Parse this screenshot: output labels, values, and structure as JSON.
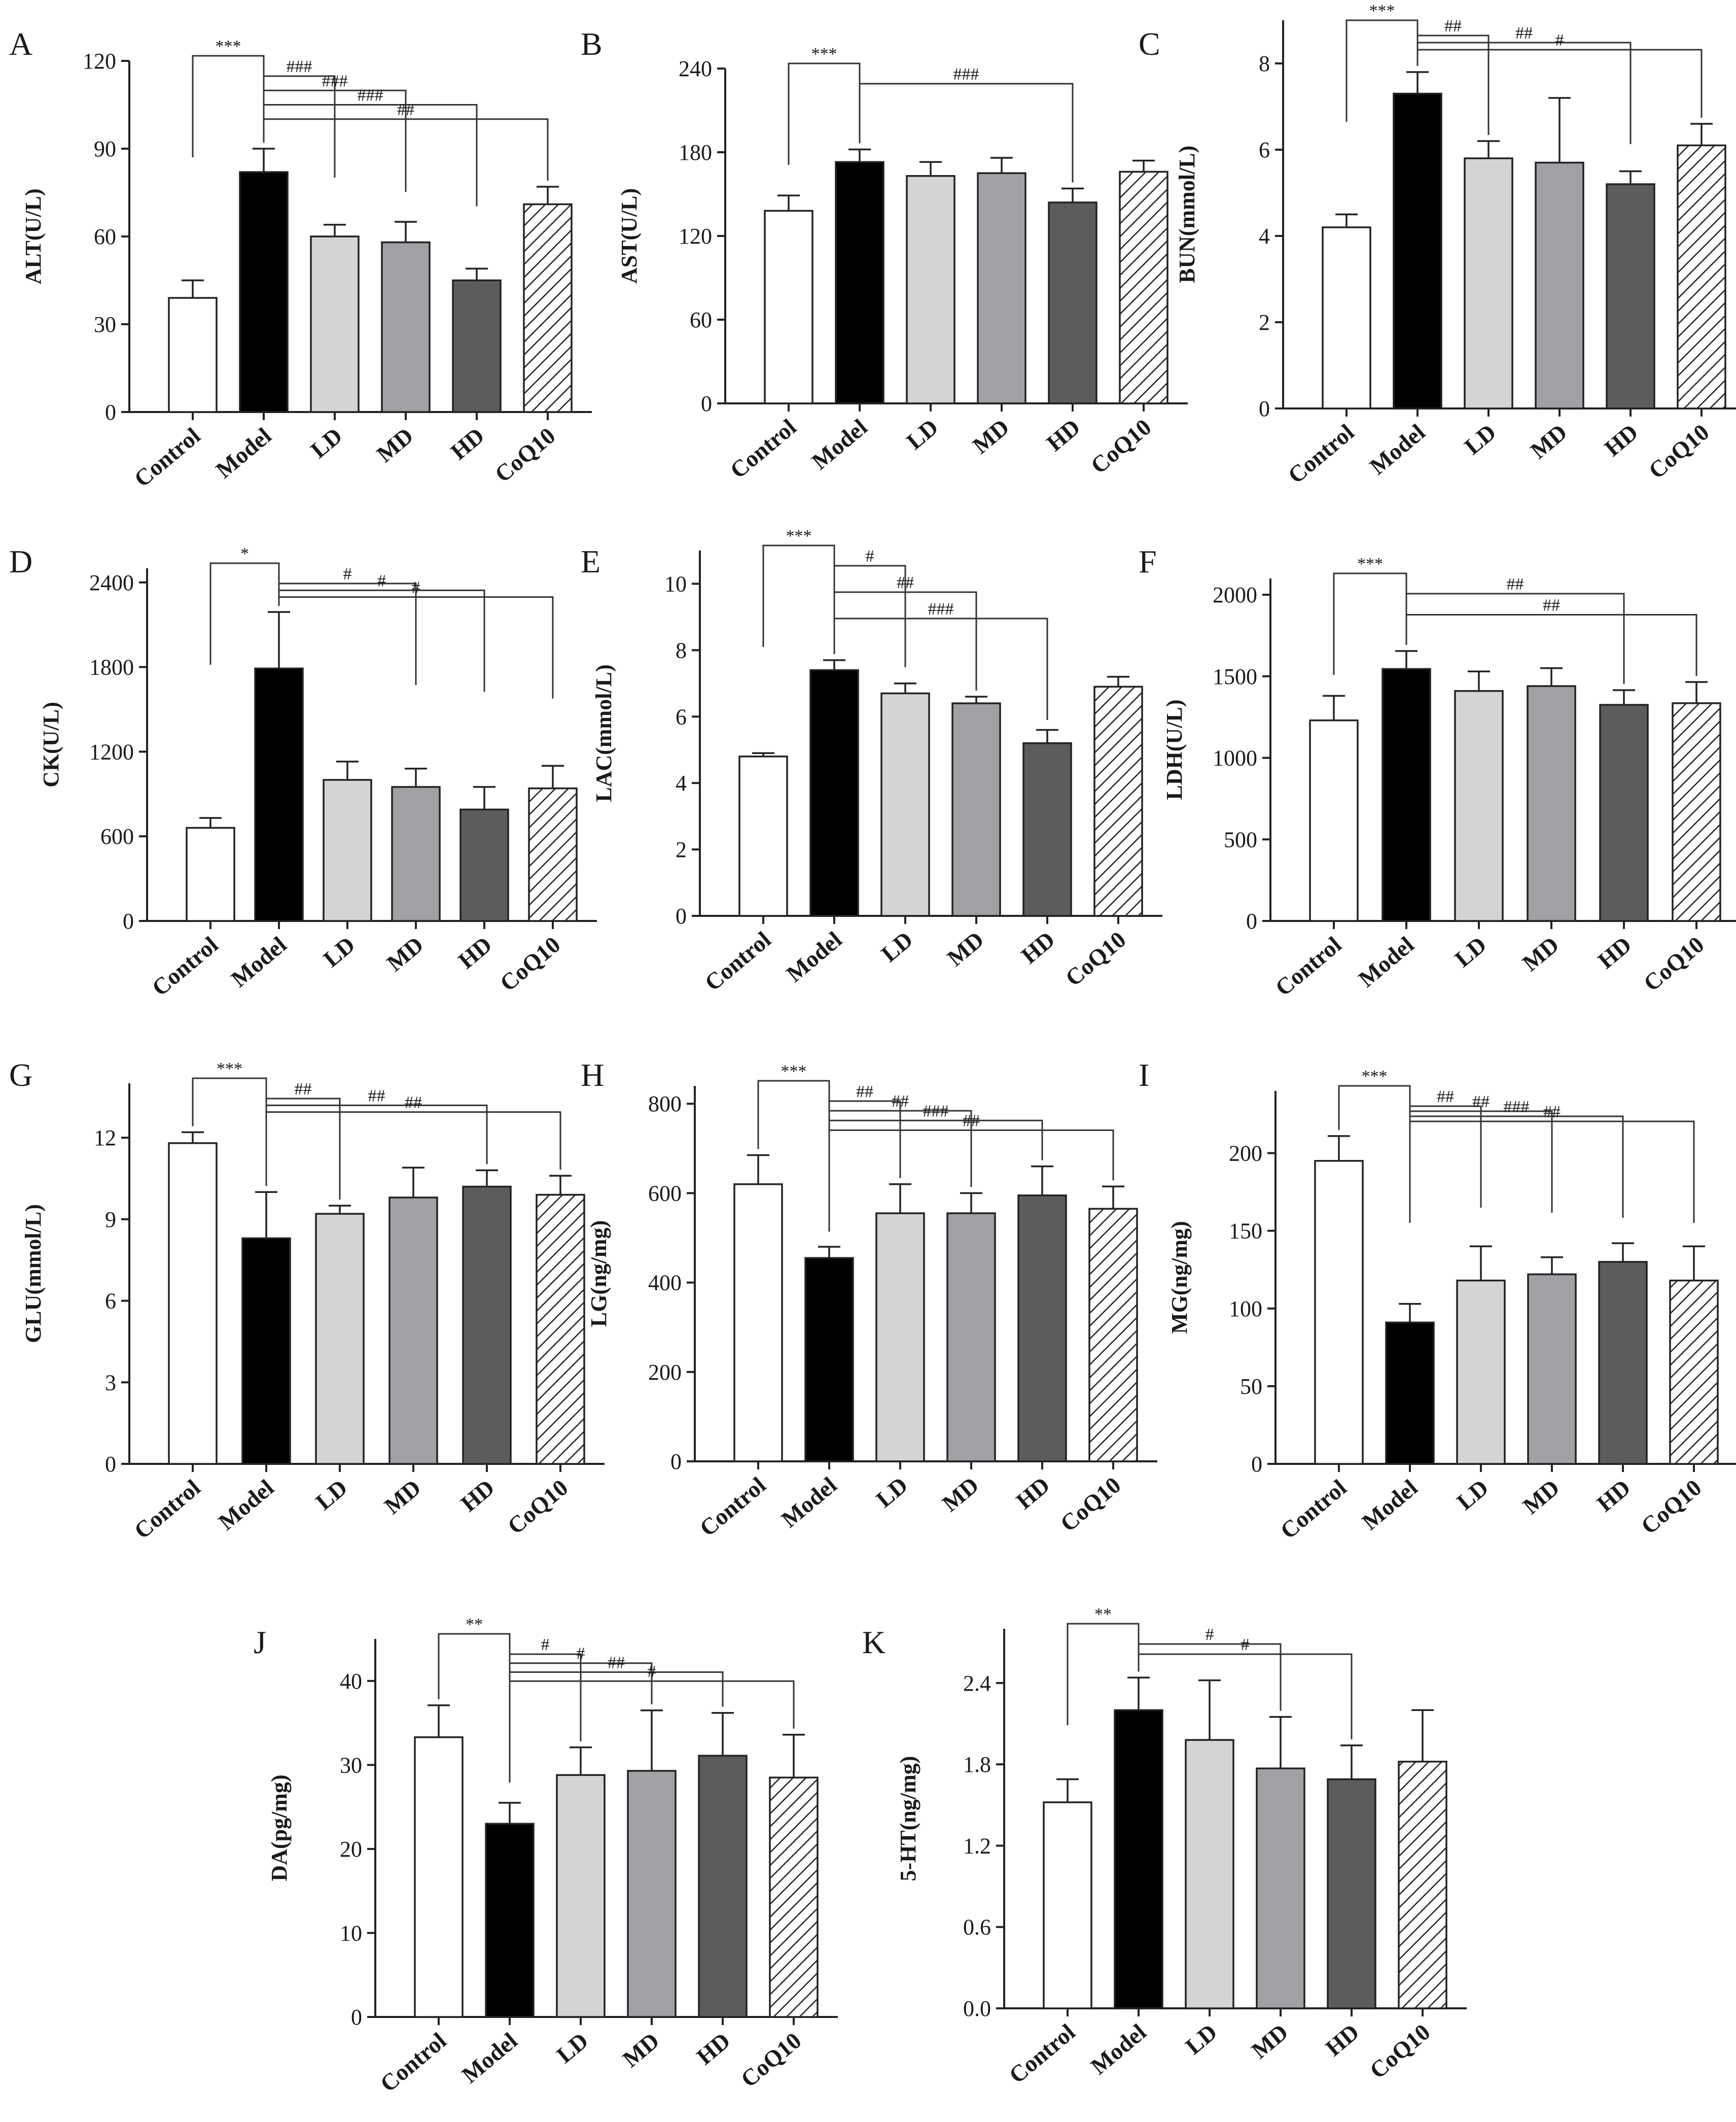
{
  "chart_data": [
    {
      "type": "bar",
      "panel": "A",
      "ylabel": "ALT(U/L)",
      "categories": [
        "Control",
        "Model",
        "LD",
        "MD",
        "HD",
        "CoQ10"
      ],
      "values": [
        39,
        82,
        60,
        58,
        45,
        71
      ],
      "errors": [
        6,
        8,
        4,
        7,
        4,
        6
      ],
      "ylim": [
        0,
        120
      ],
      "yticks": [
        0,
        30,
        60,
        90,
        120
      ],
      "annotations": [
        {
          "from": 0,
          "to": 1,
          "label": "***"
        },
        {
          "from": 1,
          "to": 2,
          "label": "###"
        },
        {
          "from": 1,
          "to": 3,
          "label": "###"
        },
        {
          "from": 1,
          "to": 4,
          "label": "###"
        },
        {
          "from": 1,
          "to": 5,
          "label": "##"
        }
      ]
    },
    {
      "type": "bar",
      "panel": "B",
      "ylabel": "AST(U/L)",
      "categories": [
        "Control",
        "Model",
        "LD",
        "MD",
        "HD",
        "CoQ10"
      ],
      "values": [
        138,
        173,
        163,
        165,
        144,
        166
      ],
      "errors": [
        11,
        9,
        10,
        11,
        10,
        8
      ],
      "ylim": [
        0,
        240
      ],
      "yticks": [
        0,
        60,
        120,
        180,
        240
      ],
      "annotations": [
        {
          "from": 0,
          "to": 1,
          "label": "***"
        },
        {
          "from": 1,
          "to": 4,
          "label": "###"
        }
      ]
    },
    {
      "type": "bar",
      "panel": "C",
      "ylabel": "BUN(mmol/L)",
      "categories": [
        "Control",
        "Model",
        "LD",
        "MD",
        "HD",
        "CoQ10"
      ],
      "values": [
        4.2,
        7.3,
        5.8,
        5.7,
        5.2,
        6.1
      ],
      "errors": [
        0.3,
        0.5,
        0.4,
        1.5,
        0.3,
        0.5
      ],
      "ylim": [
        0,
        9
      ],
      "yticks": [
        0,
        2,
        4,
        6,
        8
      ],
      "annotations": [
        {
          "from": 0,
          "to": 1,
          "label": "***"
        },
        {
          "from": 1,
          "to": 2,
          "label": "##"
        },
        {
          "from": 1,
          "to": 4,
          "label": "##"
        },
        {
          "from": 1,
          "to": 5,
          "label": "#"
        }
      ]
    },
    {
      "type": "bar",
      "panel": "D",
      "ylabel": "CK(U/L)",
      "categories": [
        "Control",
        "Model",
        "LD",
        "MD",
        "HD",
        "CoQ10"
      ],
      "values": [
        660,
        1790,
        1000,
        950,
        790,
        940
      ],
      "errors": [
        70,
        400,
        130,
        130,
        160,
        160
      ],
      "ylim": [
        0,
        2500
      ],
      "yticks": [
        0,
        600,
        1200,
        1800,
        2400
      ],
      "annotations": [
        {
          "from": 0,
          "to": 1,
          "label": "*"
        },
        {
          "from": 1,
          "to": 3,
          "label": "#"
        },
        {
          "from": 1,
          "to": 4,
          "label": "#"
        },
        {
          "from": 1,
          "to": 5,
          "label": "#"
        }
      ]
    },
    {
      "type": "bar",
      "panel": "E",
      "ylabel": "LAC(mmol/L)",
      "categories": [
        "Control",
        "Model",
        "LD",
        "MD",
        "HD",
        "CoQ10"
      ],
      "values": [
        4.8,
        7.4,
        6.7,
        6.4,
        5.2,
        6.9
      ],
      "errors": [
        0.1,
        0.3,
        0.3,
        0.2,
        0.4,
        0.3
      ],
      "ylim": [
        0,
        11
      ],
      "yticks": [
        0,
        2,
        4,
        6,
        8,
        10
      ],
      "annotations": [
        {
          "from": 0,
          "to": 1,
          "label": "***"
        },
        {
          "from": 1,
          "to": 2,
          "label": "#"
        },
        {
          "from": 1,
          "to": 3,
          "label": "##"
        },
        {
          "from": 1,
          "to": 4,
          "label": "###"
        }
      ]
    },
    {
      "type": "bar",
      "panel": "F",
      "ylabel": "LDH(U/L)",
      "categories": [
        "Control",
        "Model",
        "LD",
        "MD",
        "HD",
        "CoQ10"
      ],
      "values": [
        1230,
        1545,
        1410,
        1440,
        1325,
        1335
      ],
      "errors": [
        150,
        110,
        120,
        110,
        90,
        130
      ],
      "ylim": [
        0,
        2100
      ],
      "yticks": [
        0,
        500,
        1000,
        1500,
        2000
      ],
      "annotations": [
        {
          "from": 0,
          "to": 1,
          "label": "***"
        },
        {
          "from": 1,
          "to": 4,
          "label": "##"
        },
        {
          "from": 1,
          "to": 5,
          "label": "##"
        }
      ]
    },
    {
      "type": "bar",
      "panel": "G",
      "ylabel": "GLU(mmol/L)",
      "categories": [
        "Control",
        "Model",
        "LD",
        "MD",
        "HD",
        "CoQ10"
      ],
      "values": [
        11.8,
        8.3,
        9.2,
        9.8,
        10.2,
        9.9
      ],
      "errors": [
        0.4,
        1.7,
        0.3,
        1.1,
        0.6,
        0.7
      ],
      "ylim": [
        0,
        14
      ],
      "yticks": [
        0,
        3,
        6,
        9,
        12
      ],
      "annotations": [
        {
          "from": 0,
          "to": 1,
          "label": "***"
        },
        {
          "from": 1,
          "to": 2,
          "label": "##"
        },
        {
          "from": 1,
          "to": 4,
          "label": "##"
        },
        {
          "from": 1,
          "to": 5,
          "label": "##"
        }
      ]
    },
    {
      "type": "bar",
      "panel": "H",
      "ylabel": "LG(ng/mg)",
      "categories": [
        "Control",
        "Model",
        "LD",
        "MD",
        "HD",
        "CoQ10"
      ],
      "values": [
        620,
        455,
        555,
        555,
        595,
        565
      ],
      "errors": [
        65,
        25,
        65,
        45,
        65,
        50
      ],
      "ylim": [
        0,
        840
      ],
      "yticks": [
        0,
        200,
        400,
        600,
        800
      ],
      "annotations": [
        {
          "from": 0,
          "to": 1,
          "label": "***"
        },
        {
          "from": 1,
          "to": 2,
          "label": "##"
        },
        {
          "from": 1,
          "to": 3,
          "label": "##"
        },
        {
          "from": 1,
          "to": 4,
          "label": "###"
        },
        {
          "from": 1,
          "to": 5,
          "label": "##"
        }
      ]
    },
    {
      "type": "bar",
      "panel": "I",
      "ylabel": "MG(ng/mg)",
      "categories": [
        "Control",
        "Model",
        "LD",
        "MD",
        "HD",
        "CoQ10"
      ],
      "values": [
        195,
        91,
        118,
        122,
        130,
        118
      ],
      "errors": [
        16,
        12,
        22,
        11,
        12,
        22
      ],
      "ylim": [
        0,
        240
      ],
      "yticks": [
        0,
        50,
        100,
        150,
        200
      ],
      "annotations": [
        {
          "from": 0,
          "to": 1,
          "label": "***"
        },
        {
          "from": 1,
          "to": 2,
          "label": "##"
        },
        {
          "from": 1,
          "to": 3,
          "label": "##"
        },
        {
          "from": 1,
          "to": 4,
          "label": "###"
        },
        {
          "from": 1,
          "to": 5,
          "label": "##"
        }
      ]
    },
    {
      "type": "bar",
      "panel": "J",
      "ylabel": "DA(pg/mg)",
      "categories": [
        "Control",
        "Model",
        "LD",
        "MD",
        "HD",
        "CoQ10"
      ],
      "values": [
        33.3,
        23.0,
        28.8,
        29.3,
        31.1,
        28.5
      ],
      "errors": [
        3.8,
        2.5,
        3.3,
        7.2,
        5.1,
        5.1
      ],
      "ylim": [
        0,
        45
      ],
      "yticks": [
        0,
        10,
        20,
        30,
        40
      ],
      "annotations": [
        {
          "from": 0,
          "to": 1,
          "label": "**"
        },
        {
          "from": 1,
          "to": 2,
          "label": "#"
        },
        {
          "from": 1,
          "to": 3,
          "label": "#"
        },
        {
          "from": 1,
          "to": 4,
          "label": "##"
        },
        {
          "from": 1,
          "to": 5,
          "label": "#"
        }
      ]
    },
    {
      "type": "bar",
      "panel": "K",
      "ylabel": "5-HT(ng/mg)",
      "categories": [
        "Control",
        "Model",
        "LD",
        "MD",
        "HD",
        "CoQ10"
      ],
      "values": [
        1.52,
        2.2,
        1.98,
        1.77,
        1.69,
        1.82
      ],
      "errors": [
        0.17,
        0.24,
        0.44,
        0.38,
        0.25,
        0.38
      ],
      "ylim": [
        0,
        2.8
      ],
      "yticks": [
        "0.0",
        "0.6",
        "1.2",
        "1.8",
        "2.4"
      ],
      "annotations": [
        {
          "from": 0,
          "to": 1,
          "label": "**"
        },
        {
          "from": 1,
          "to": 3,
          "label": "#"
        },
        {
          "from": 1,
          "to": 4,
          "label": "#"
        }
      ]
    }
  ],
  "style": {
    "bar_colors": [
      "#ffffff",
      "#000000",
      "#d4d4d4",
      "#a0a0a5",
      "#5c5c5c",
      "hatched"
    ],
    "axis_color": "#222222"
  }
}
